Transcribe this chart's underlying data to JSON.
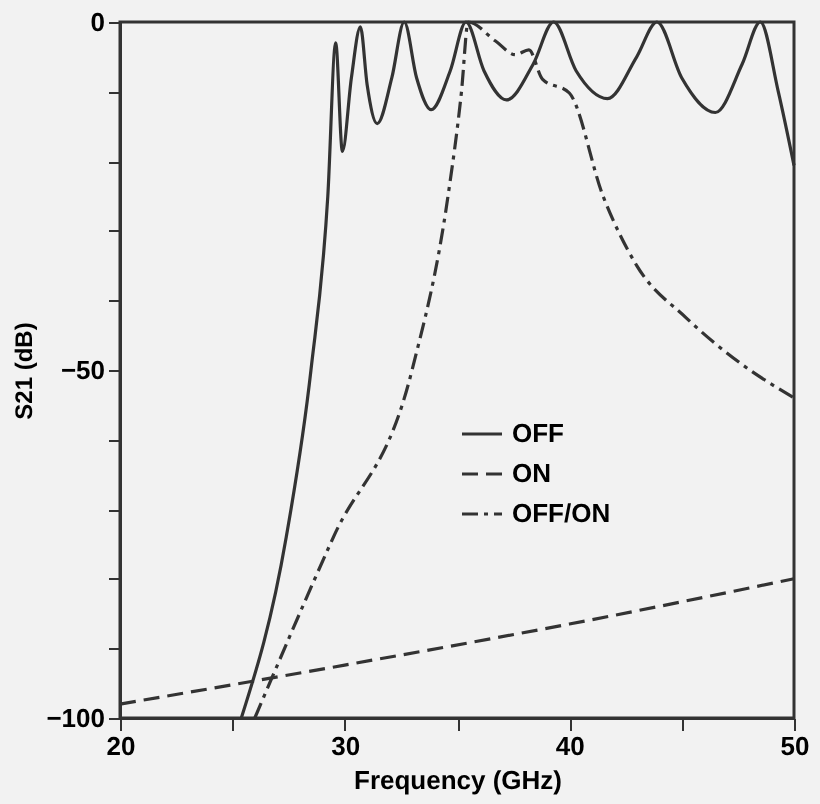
{
  "chart_data": {
    "type": "line",
    "xlabel": "Frequency (GHz)",
    "ylabel": "S21 (dB)",
    "xlim": [
      20,
      50
    ],
    "ylim": [
      -100,
      0
    ],
    "xticks": [
      20,
      {
        "value": 25,
        "label": null
      },
      30,
      {
        "value": 35,
        "label": null
      },
      40,
      {
        "value": 45,
        "label": null
      },
      50
    ],
    "yticks": [
      -100,
      {
        "value": -90,
        "label": null
      },
      {
        "value": -80,
        "label": null
      },
      {
        "value": -70,
        "label": null
      },
      {
        "value": -60,
        "label": null
      },
      -50,
      {
        "value": -40,
        "label": null
      },
      {
        "value": -30,
        "label": null
      },
      {
        "value": -20,
        "label": null
      },
      {
        "value": -10,
        "label": null
      },
      0
    ],
    "grid": false,
    "legend": "right",
    "marker": "none",
    "series": [
      {
        "name": "OFF",
        "color": "#333333",
        "line_style": "solid",
        "x": [
          25.4,
          27.4,
          28.5,
          29.25,
          29.6,
          29.9,
          30.3,
          30.7,
          31.0,
          31.45,
          32.1,
          32.65,
          33.2,
          33.85,
          34.7,
          35.4,
          36.2,
          37.2,
          38.4,
          39.3,
          40.3,
          41.7,
          43.0,
          43.9,
          45.0,
          46.5,
          47.7,
          48.5,
          49.3,
          50.0
        ],
        "values": [
          -100,
          -74,
          -50,
          -25,
          -3,
          -18.6,
          -8,
          -0.7,
          -9,
          -14.6,
          -8,
          0,
          -8,
          -12.6,
          -7,
          0,
          -7,
          -11.2,
          -6,
          0,
          -7,
          -11,
          -5,
          0,
          -8,
          -13,
          -6,
          0,
          -10,
          -20.6
        ]
      },
      {
        "name": "ON",
        "color": "#333333",
        "line_style": "dashed",
        "x": [
          20,
          30,
          40,
          50
        ],
        "values": [
          -98,
          -92.4,
          -86.5,
          -80
        ]
      },
      {
        "name": "OFF/ON",
        "color": "#333333",
        "line_style": "dashdot",
        "x": [
          26.0,
          29.5,
          33.0,
          34.6,
          35.2,
          35.5,
          36.7,
          37.6,
          38.2,
          38.8,
          40.0,
          41.5,
          43.0,
          45.2,
          47.6,
          50.0
        ],
        "values": [
          -100,
          -74,
          -50,
          -25,
          -10,
          0,
          -2.7,
          -4.7,
          -4,
          -8.2,
          -10.2,
          -25,
          -35,
          -42.5,
          -49,
          -54
        ]
      }
    ]
  }
}
